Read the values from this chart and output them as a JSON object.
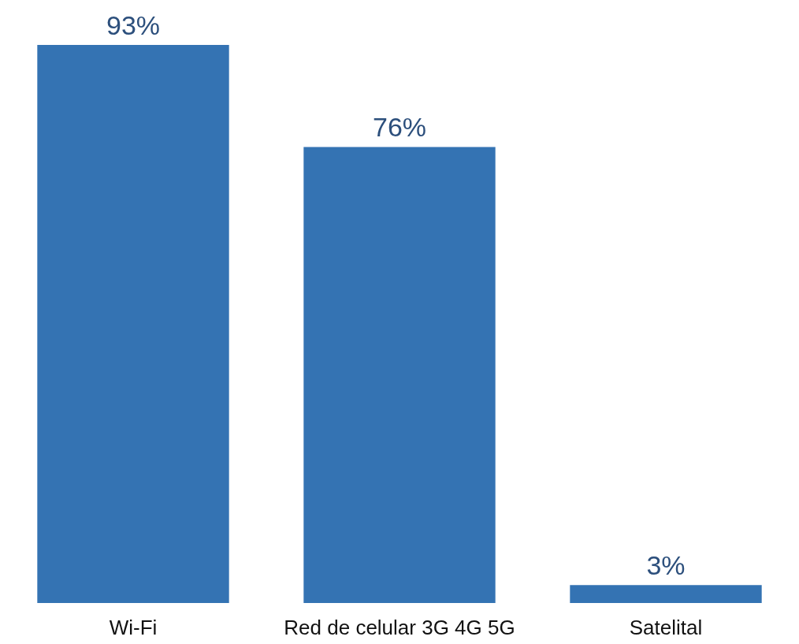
{
  "chart_data": {
    "type": "bar",
    "categories": [
      "Wi-Fi",
      "Red de celular 3G 4G 5G",
      "Satelital"
    ],
    "values": [
      93,
      76,
      3
    ],
    "value_labels": [
      "93%",
      "76%",
      "3%"
    ],
    "color": "#3473b3"
  }
}
